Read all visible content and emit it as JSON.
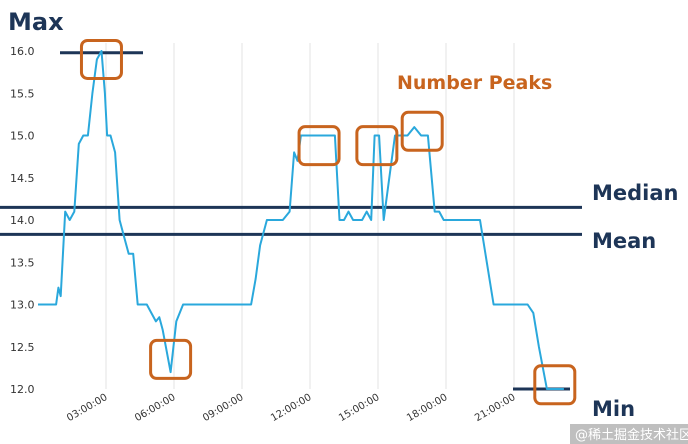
{
  "chart_data": {
    "type": "line",
    "xlim": [
      0,
      24
    ],
    "ylim": [
      12.0,
      16.0
    ],
    "y_ticks": [
      "12.0",
      "12.5",
      "13.0",
      "13.5",
      "14.0",
      "14.5",
      "15.0",
      "15.5",
      "16.0"
    ],
    "x_ticks": [
      "03:00:00",
      "06:00:00",
      "09:00:00",
      "12:00:00",
      "15:00:00",
      "18:00:00",
      "21:00:00"
    ],
    "grid": "vertical",
    "series_color": "#2aa8dc",
    "series": [
      {
        "points": [
          [
            0.0,
            13.0
          ],
          [
            0.8,
            13.0
          ],
          [
            0.9,
            13.2
          ],
          [
            1.0,
            13.1
          ],
          [
            1.2,
            14.1
          ],
          [
            1.4,
            14.0
          ],
          [
            1.6,
            14.1
          ],
          [
            1.8,
            14.9
          ],
          [
            2.0,
            15.0
          ],
          [
            2.2,
            15.0
          ],
          [
            2.4,
            15.5
          ],
          [
            2.6,
            15.9
          ],
          [
            2.8,
            16.0
          ],
          [
            2.95,
            15.5
          ],
          [
            3.05,
            15.0
          ],
          [
            3.2,
            15.0
          ],
          [
            3.4,
            14.8
          ],
          [
            3.6,
            14.0
          ],
          [
            3.8,
            13.8
          ],
          [
            4.0,
            13.6
          ],
          [
            4.2,
            13.6
          ],
          [
            4.4,
            13.0
          ],
          [
            4.8,
            13.0
          ],
          [
            5.0,
            12.9
          ],
          [
            5.2,
            12.8
          ],
          [
            5.35,
            12.85
          ],
          [
            5.5,
            12.7
          ],
          [
            5.85,
            12.2
          ],
          [
            6.1,
            12.8
          ],
          [
            6.4,
            13.0
          ],
          [
            6.8,
            13.0
          ],
          [
            9.0,
            13.0
          ],
          [
            9.4,
            13.0
          ],
          [
            9.6,
            13.3
          ],
          [
            9.8,
            13.7
          ],
          [
            10.1,
            14.0
          ],
          [
            10.5,
            14.0
          ],
          [
            10.8,
            14.0
          ],
          [
            11.1,
            14.1
          ],
          [
            11.3,
            14.8
          ],
          [
            11.45,
            14.7
          ],
          [
            11.6,
            15.0
          ],
          [
            13.1,
            15.0
          ],
          [
            13.3,
            14.0
          ],
          [
            13.5,
            14.0
          ],
          [
            13.7,
            14.1
          ],
          [
            13.9,
            14.0
          ],
          [
            14.3,
            14.0
          ],
          [
            14.5,
            14.1
          ],
          [
            14.7,
            14.0
          ],
          [
            14.85,
            15.0
          ],
          [
            15.05,
            15.0
          ],
          [
            15.25,
            14.0
          ],
          [
            15.5,
            14.5
          ],
          [
            15.75,
            15.0
          ],
          [
            16.3,
            15.0
          ],
          [
            16.6,
            15.1
          ],
          [
            16.9,
            15.0
          ],
          [
            17.2,
            15.0
          ],
          [
            17.5,
            14.1
          ],
          [
            17.7,
            14.1
          ],
          [
            17.9,
            14.0
          ],
          [
            19.5,
            14.0
          ],
          [
            19.8,
            13.5
          ],
          [
            20.1,
            13.0
          ],
          [
            21.0,
            13.0
          ],
          [
            21.6,
            13.0
          ],
          [
            21.85,
            12.9
          ],
          [
            22.1,
            12.5
          ],
          [
            22.45,
            12.0
          ],
          [
            23.2,
            12.0
          ]
        ]
      }
    ],
    "reference_lines": [
      {
        "name": "Median",
        "value": 14.15,
        "color": "#1d3557"
      },
      {
        "name": "Mean",
        "value": 13.83,
        "color": "#1d3557"
      }
    ],
    "max_line": {
      "value": 15.98,
      "color": "#1d3557"
    },
    "min_line": {
      "value": 12.0,
      "color": "#1d3557"
    },
    "annotations": {
      "max_label": "Max",
      "min_label": "Min",
      "median_label": "Median",
      "mean_label": "Mean",
      "peaks_label": "Number Peaks",
      "peaks_color": "#c8641e"
    },
    "highlight_boxes": [
      {
        "x": 2.8,
        "y": 15.9
      },
      {
        "x": 5.85,
        "y": 12.35
      },
      {
        "x": 12.4,
        "y": 14.88
      },
      {
        "x": 14.95,
        "y": 14.88
      },
      {
        "x": 16.95,
        "y": 15.05
      },
      {
        "x": 22.8,
        "y": 12.05
      }
    ]
  },
  "watermark": "@稀土掘金技术社区"
}
